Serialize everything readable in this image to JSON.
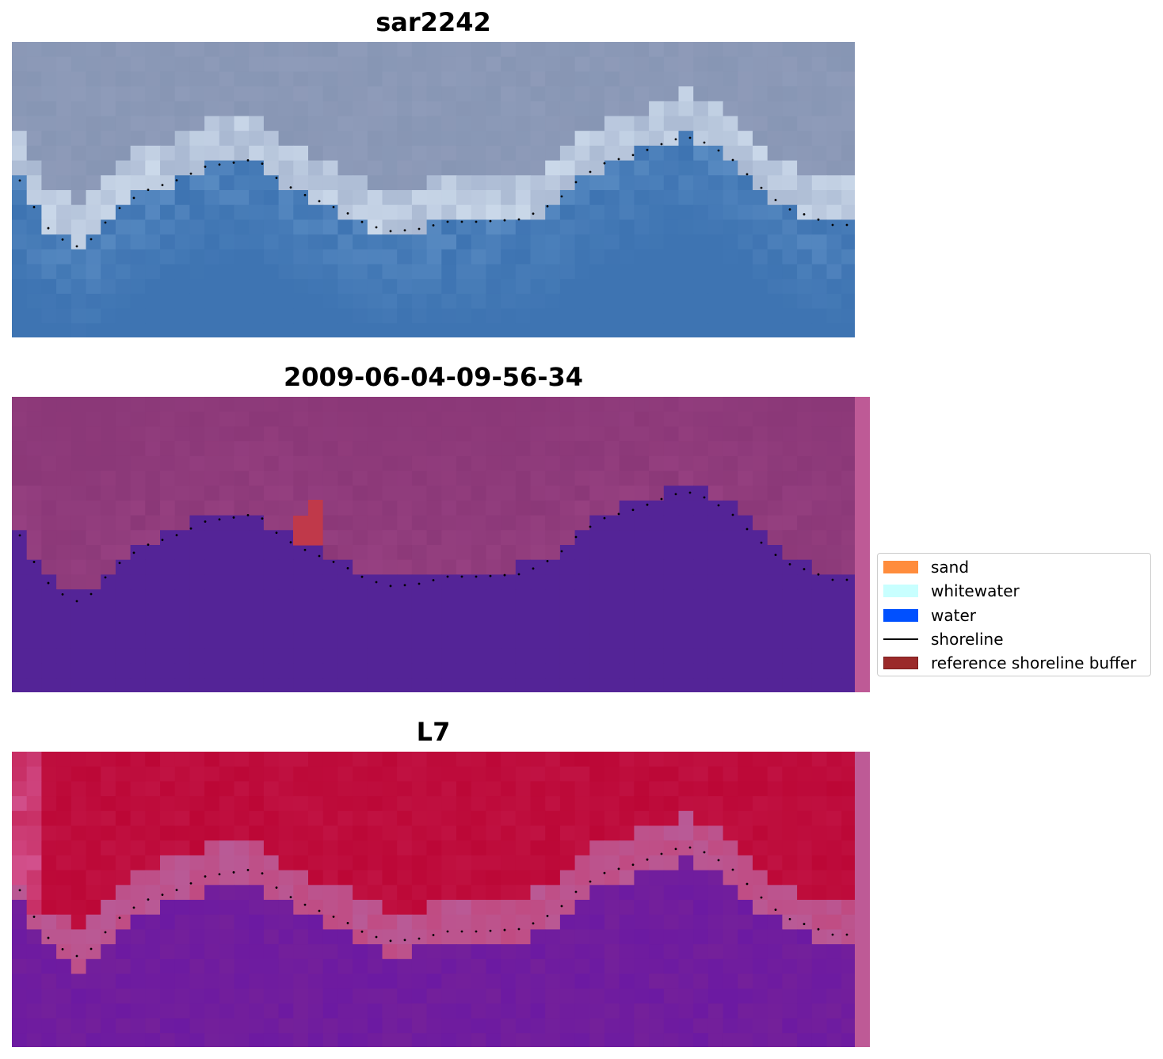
{
  "panels": [
    {
      "title": "sar2242",
      "kind": "rgb"
    },
    {
      "title": "2009-06-04-09-56-34",
      "kind": "classified"
    },
    {
      "title": "L7",
      "kind": "mndwi"
    }
  ],
  "legend": {
    "items": [
      {
        "label": "sand",
        "color": "#ff8c3c",
        "type": "patch"
      },
      {
        "label": "whitewater",
        "color": "#c8ffff",
        "type": "patch"
      },
      {
        "label": "water",
        "color": "#0050ff",
        "type": "patch"
      },
      {
        "label": "shoreline",
        "color": "#000000",
        "type": "line"
      },
      {
        "label": "reference shoreline buffer",
        "color": "#9b2a2a",
        "type": "patch"
      }
    ]
  },
  "colors": {
    "water_blue": "#3e74b2",
    "classified_water": "#542497",
    "classified_land": "#8b3878",
    "mndwi_land": "#bc0736",
    "mndwi_water": "#74209a",
    "buffer_strip": "#be5a96"
  }
}
